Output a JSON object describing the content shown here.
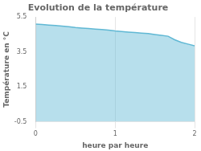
{
  "chart_data": {
    "type": "area",
    "title": "Evolution de la température",
    "x_label": "heure par heure",
    "y_label": "Température en °C",
    "x": [
      0.0,
      0.083,
      0.167,
      0.25,
      0.333,
      0.417,
      0.5,
      0.583,
      0.667,
      0.75,
      0.833,
      0.917,
      1.0,
      1.083,
      1.167,
      1.25,
      1.333,
      1.417,
      1.5,
      1.583,
      1.667,
      1.75,
      1.833,
      1.917,
      2.0
    ],
    "values": [
      5.1,
      5.07,
      5.04,
      5.01,
      4.98,
      4.95,
      4.9,
      4.87,
      4.84,
      4.81,
      4.78,
      4.75,
      4.7,
      4.67,
      4.64,
      4.61,
      4.58,
      4.55,
      4.5,
      4.45,
      4.4,
      4.2,
      4.05,
      3.95,
      3.85
    ],
    "color": "#60b8d4",
    "xlim": [
      0,
      2
    ],
    "xticks": [
      0,
      1,
      2
    ],
    "ylim": [
      -0.5,
      5.5
    ],
    "yticks": [
      -0.5,
      1.5,
      3.5,
      5.5
    ],
    "grid": "x"
  }
}
